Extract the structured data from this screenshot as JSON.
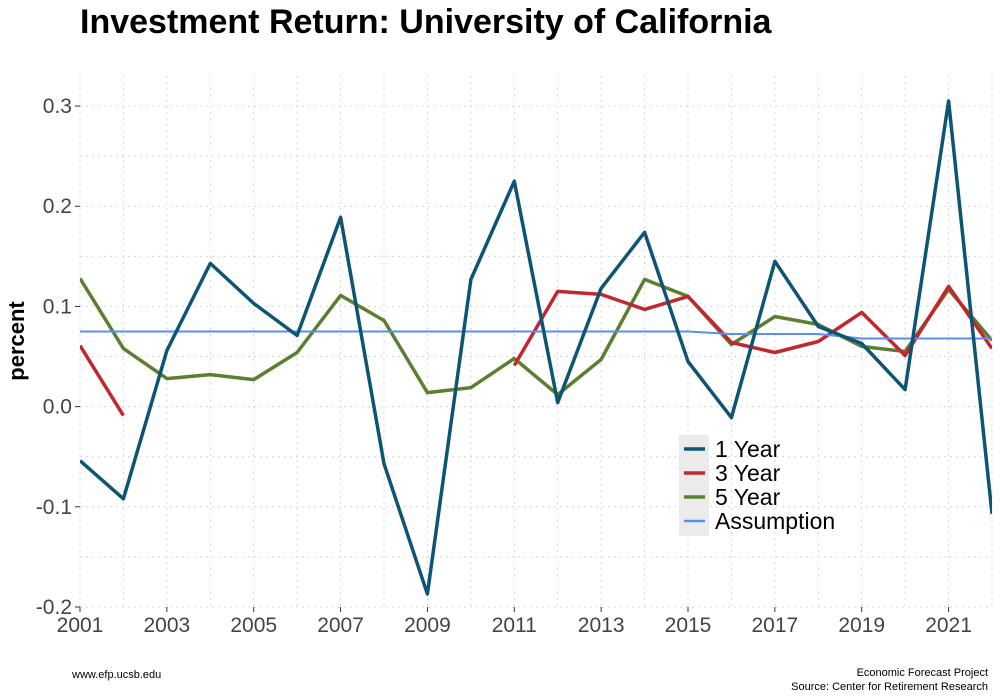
{
  "footer": {
    "left": "www.efp.ucsb.edu",
    "right_line1": "Economic Forecast Project",
    "right_line2": "Source: Center for Retirement Research"
  },
  "chart_data": {
    "type": "line",
    "title": "Investment Return: University of California",
    "xlabel": "",
    "ylabel": "percent",
    "xlim": [
      2001,
      2022
    ],
    "ylim": [
      -0.2,
      0.33
    ],
    "x_ticks": [
      2001,
      2003,
      2005,
      2007,
      2009,
      2011,
      2013,
      2015,
      2017,
      2019,
      2021
    ],
    "x_tick_labels": [
      "2001",
      "2003",
      "2005",
      "2007",
      "2009",
      "2011",
      "2013",
      "2015",
      "2017",
      "2019",
      "2021"
    ],
    "y_ticks": [
      -0.2,
      -0.1,
      0.0,
      0.1,
      0.2,
      0.3
    ],
    "y_tick_labels": [
      "-0.2",
      "-0.1",
      "0.0",
      "0.1",
      "0.2",
      "0.3"
    ],
    "grid": true,
    "legend_position": "right, lower-middle",
    "series": [
      {
        "name": "1 Year",
        "color": "#0e5575",
        "points": [
          [
            2001,
            -0.054
          ],
          [
            2002,
            -0.092
          ],
          [
            2003,
            0.056
          ],
          [
            2004,
            0.143
          ],
          [
            2005,
            0.103
          ],
          [
            2006,
            0.071
          ],
          [
            2007,
            0.189
          ],
          [
            2008,
            -0.057
          ],
          [
            2009,
            -0.187
          ],
          [
            2010,
            0.127
          ],
          [
            2011,
            0.225
          ],
          [
            2012,
            0.004
          ],
          [
            2013,
            0.118
          ],
          [
            2014,
            0.174
          ],
          [
            2015,
            0.045
          ],
          [
            2016,
            -0.011
          ],
          [
            2017,
            0.145
          ],
          [
            2018,
            0.08
          ],
          [
            2019,
            0.063
          ],
          [
            2020,
            0.017
          ],
          [
            2021,
            0.305
          ],
          [
            2022,
            -0.107
          ]
        ]
      },
      {
        "name": "3 Year",
        "color": "#c1272d",
        "segments": [
          [
            [
              2001,
              0.061
            ],
            [
              2002,
              -0.009
            ]
          ],
          [
            [
              2011,
              0.041
            ],
            [
              2012,
              0.115
            ],
            [
              2013,
              0.112
            ],
            [
              2014,
              0.097
            ],
            [
              2015,
              0.11
            ],
            [
              2016,
              0.064
            ],
            [
              2017,
              0.054
            ],
            [
              2018,
              0.065
            ],
            [
              2019,
              0.094
            ],
            [
              2020,
              0.051
            ],
            [
              2021,
              0.12
            ],
            [
              2022,
              0.058
            ]
          ]
        ]
      },
      {
        "name": "5 Year",
        "color": "#5b7f31",
        "points": [
          [
            2001,
            0.128
          ],
          [
            2002,
            0.058
          ],
          [
            2003,
            0.028
          ],
          [
            2004,
            0.032
          ],
          [
            2005,
            0.027
          ],
          [
            2006,
            0.054
          ],
          [
            2007,
            0.111
          ],
          [
            2008,
            0.086
          ],
          [
            2009,
            0.014
          ],
          [
            2010,
            0.019
          ],
          [
            2011,
            0.048
          ],
          [
            2012,
            0.012
          ],
          [
            2013,
            0.047
          ],
          [
            2014,
            0.127
          ],
          [
            2015,
            0.11
          ],
          [
            2016,
            0.062
          ],
          [
            2017,
            0.09
          ],
          [
            2018,
            0.082
          ],
          [
            2019,
            0.06
          ],
          [
            2020,
            0.055
          ],
          [
            2021,
            0.117
          ],
          [
            2022,
            0.066
          ]
        ]
      },
      {
        "name": "Assumption",
        "color": "#5a8ef0",
        "points": [
          [
            2001,
            0.075
          ],
          [
            2015,
            0.075
          ],
          [
            2016,
            0.0725
          ],
          [
            2018,
            0.0725
          ],
          [
            2019,
            0.068
          ],
          [
            2022,
            0.068
          ]
        ]
      }
    ]
  }
}
